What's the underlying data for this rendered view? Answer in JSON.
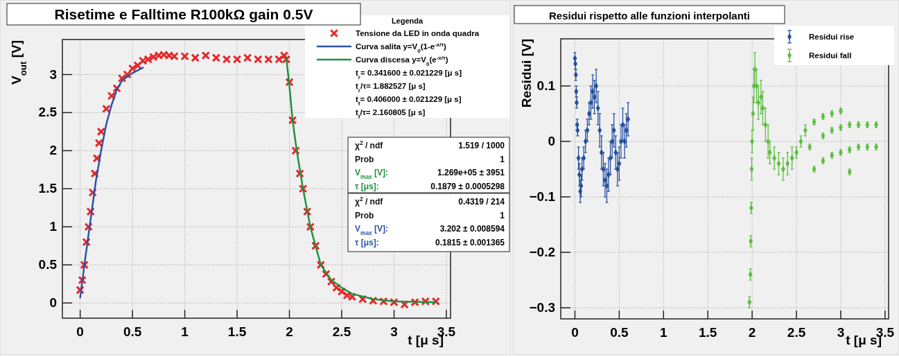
{
  "chart_data": [
    {
      "type": "scatter",
      "title": "Risetime e Falltime R100kΩ gain 0.5V",
      "xlabel": "t [μ s]",
      "ylabel": "V$_{out}$ [V]",
      "legend_title": "Legenda",
      "legend": "top right",
      "grid": true,
      "xlim": [
        -0.17,
        3.54
      ],
      "ylim": [
        -0.2,
        3.46
      ],
      "xticks": [
        0,
        0.5,
        1,
        1.5,
        2,
        2.5,
        3,
        3.5
      ],
      "yticks": [
        0,
        0.5,
        1,
        1.5,
        2,
        2.5,
        3
      ],
      "series": [
        {
          "name": "Tensione da LED in onda quadra",
          "marker": "cross",
          "color": "#e8262a",
          "x": [
            0,
            0.02,
            0.04,
            0.06,
            0.08,
            0.1,
            0.12,
            0.14,
            0.16,
            0.18,
            0.2,
            0.25,
            0.3,
            0.35,
            0.4,
            0.45,
            0.5,
            0.55,
            0.6,
            0.65,
            0.7,
            0.75,
            0.8,
            0.85,
            0.9,
            1.0,
            1.1,
            1.2,
            1.3,
            1.4,
            1.5,
            1.6,
            1.7,
            1.8,
            1.9,
            1.95,
            1.97,
            2.0,
            2.03,
            2.06,
            2.1,
            2.13,
            2.17,
            2.2,
            2.25,
            2.3,
            2.35,
            2.4,
            2.45,
            2.5,
            2.55,
            2.6,
            2.7,
            2.8,
            2.9,
            3.0,
            3.1,
            3.2,
            3.3,
            3.4
          ],
          "values": [
            0.17,
            0.3,
            0.5,
            0.8,
            1.0,
            1.2,
            1.45,
            1.7,
            1.9,
            2.1,
            2.25,
            2.55,
            2.72,
            2.82,
            2.95,
            3.0,
            3.08,
            3.12,
            3.18,
            3.2,
            3.23,
            3.25,
            3.26,
            3.25,
            3.24,
            3.24,
            3.22,
            3.25,
            3.22,
            3.2,
            3.2,
            3.22,
            3.2,
            3.2,
            3.2,
            3.25,
            3.2,
            2.9,
            2.4,
            2.0,
            1.7,
            1.5,
            1.2,
            1.0,
            0.75,
            0.5,
            0.38,
            0.28,
            0.2,
            0.15,
            0.1,
            0.08,
            0.05,
            0.03,
            0.02,
            0.01,
            -0.02,
            0.01,
            0.02,
            0.02
          ]
        },
        {
          "name": "Curva salita y=V$_{0}$(1-e$^{-x/τ}$)",
          "type": "line",
          "color": "#2a54a4",
          "x": [
            0,
            0.05,
            0.1,
            0.15,
            0.2,
            0.25,
            0.3,
            0.35,
            0.4,
            0.5,
            0.6
          ],
          "values": [
            0.07,
            0.6,
            1.1,
            1.6,
            2.0,
            2.35,
            2.6,
            2.8,
            2.92,
            3.02,
            3.09
          ]
        },
        {
          "name": "Curva discesa y=V$_{0}$(e$^{-x/τ}$)",
          "type": "line",
          "color": "#21903f",
          "x": [
            1.97,
            2.0,
            2.03,
            2.07,
            2.13,
            2.2,
            2.3,
            2.4,
            2.5,
            2.6,
            2.8,
            3.0,
            3.4
          ],
          "values": [
            3.22,
            2.85,
            2.4,
            2.0,
            1.5,
            1.0,
            0.5,
            0.3,
            0.2,
            0.12,
            0.05,
            0.02,
            0.01
          ]
        }
      ],
      "annotations": [
        "t$_{r}$= 0.341600 ± 0.021229 [μ s]",
        "t$_{r}$/τ= 1.882527 [μ s]",
        "t$_{f}$= 0.406000 ± 0.021229 [μ s]",
        "t$_{f}$/τ= 2.160805 [μ s]",
        "χ$^{2}$ / ndf",
        "1.519 / 1000",
        "Prob",
        "1",
        "V$_{max}$ [V]:",
        "1.269e+05 ±  3951",
        "τ [μs]:",
        "0.1879 ± 0.0005298",
        "χ$^{2}$ / ndf",
        "0.4319 / 214",
        "Prob",
        "1",
        "V$_{max}$ [V]:",
        "3.202 ± 0.008594",
        "τ [μs]:",
        "0.1815 ± 0.001365"
      ]
    },
    {
      "type": "scatter",
      "title": "Residui rispetto alle funzioni interpolanti",
      "xlabel": "t [μ s]",
      "ylabel": "Residui [V]",
      "legend": "top right",
      "grid": true,
      "xlim": [
        -0.16,
        3.54
      ],
      "ylim": [
        -0.32,
        0.185
      ],
      "xticks": [
        0,
        0.5,
        1,
        1.5,
        2,
        2.5,
        3,
        3.5
      ],
      "yticks": [
        -0.3,
        -0.2,
        -0.1,
        0,
        0.1
      ],
      "marker": "diamond",
      "series": [
        {
          "name": "Residui rise",
          "color": "#2550a0",
          "x": [
            0,
            0.005,
            0.01,
            0.015,
            0.02,
            0.025,
            0.03,
            0.04,
            0.05,
            0.06,
            0.07,
            0.08,
            0.1,
            0.12,
            0.14,
            0.16,
            0.18,
            0.2,
            0.22,
            0.24,
            0.26,
            0.28,
            0.3,
            0.32,
            0.34,
            0.36,
            0.38,
            0.4,
            0.42,
            0.44,
            0.46,
            0.48,
            0.5,
            0.52,
            0.54,
            0.56,
            0.58,
            0.6
          ],
          "values": [
            0.15,
            0.14,
            0.12,
            0.09,
            0.07,
            0.03,
            0.02,
            -0.03,
            -0.06,
            -0.09,
            -0.08,
            -0.05,
            -0.03,
            0.0,
            0.02,
            0.05,
            0.07,
            0.09,
            0.08,
            0.1,
            0.06,
            0.02,
            -0.02,
            -0.05,
            -0.07,
            -0.08,
            -0.06,
            -0.03,
            0.0,
            0.02,
            -0.02,
            -0.05,
            -0.04,
            0.0,
            0.03,
            0.0,
            0.02,
            0.04
          ],
          "errors": [
            0.01,
            0.01,
            0.01,
            0.01,
            0.01,
            0.01,
            0.01,
            0.02,
            0.02,
            0.02,
            0.02,
            0.02,
            0.02,
            0.02,
            0.02,
            0.02,
            0.03,
            0.03,
            0.03,
            0.03,
            0.03,
            0.03,
            0.03,
            0.03,
            0.03,
            0.03,
            0.03,
            0.03,
            0.03,
            0.03,
            0.03,
            0.03,
            0.03,
            0.03,
            0.03,
            0.03,
            0.03,
            0.03
          ]
        },
        {
          "name": "Residui fall",
          "color": "#5cbf3f",
          "x": [
            1.97,
            1.98,
            1.985,
            1.99,
            1.995,
            2.0,
            2.01,
            2.02,
            2.03,
            2.05,
            2.07,
            2.1,
            2.12,
            2.15,
            2.18,
            2.2,
            2.25,
            2.3,
            2.35,
            2.4,
            2.45,
            2.5,
            2.55,
            2.6,
            2.7,
            2.8,
            2.9,
            3.0,
            2.65,
            2.8,
            2.9,
            3.0,
            3.1,
            3.2,
            3.3,
            3.4,
            2.7,
            2.8,
            2.9,
            3.0,
            3.1,
            3.2,
            3.3,
            3.4,
            3.1
          ],
          "values": [
            -0.29,
            -0.24,
            -0.18,
            -0.12,
            -0.05,
            0.0,
            0.05,
            0.1,
            0.13,
            0.1,
            0.07,
            0.08,
            0.06,
            0.03,
            0.0,
            -0.02,
            -0.03,
            -0.04,
            -0.05,
            -0.04,
            -0.03,
            -0.02,
            0.0,
            0.02,
            0.035,
            0.045,
            0.05,
            0.055,
            -0.01,
            0.01,
            0.02,
            0.025,
            0.03,
            0.03,
            0.03,
            0.03,
            -0.05,
            -0.035,
            -0.025,
            -0.02,
            -0.015,
            -0.01,
            -0.01,
            -0.01,
            -0.055
          ],
          "errors": [
            0.01,
            0.01,
            0.01,
            0.01,
            0.02,
            0.02,
            0.03,
            0.03,
            0.03,
            0.03,
            0.03,
            0.03,
            0.03,
            0.03,
            0.03,
            0.02,
            0.02,
            0.02,
            0.02,
            0.02,
            0.02,
            0.01,
            0.01,
            0.01,
            0.005,
            0.005,
            0.005,
            0.005,
            0.005,
            0.005,
            0.005,
            0.005,
            0.005,
            0.005,
            0.005,
            0.005,
            0.005,
            0.005,
            0.005,
            0.005,
            0.005,
            0.005,
            0.005,
            0.005,
            0.005
          ]
        }
      ]
    }
  ]
}
